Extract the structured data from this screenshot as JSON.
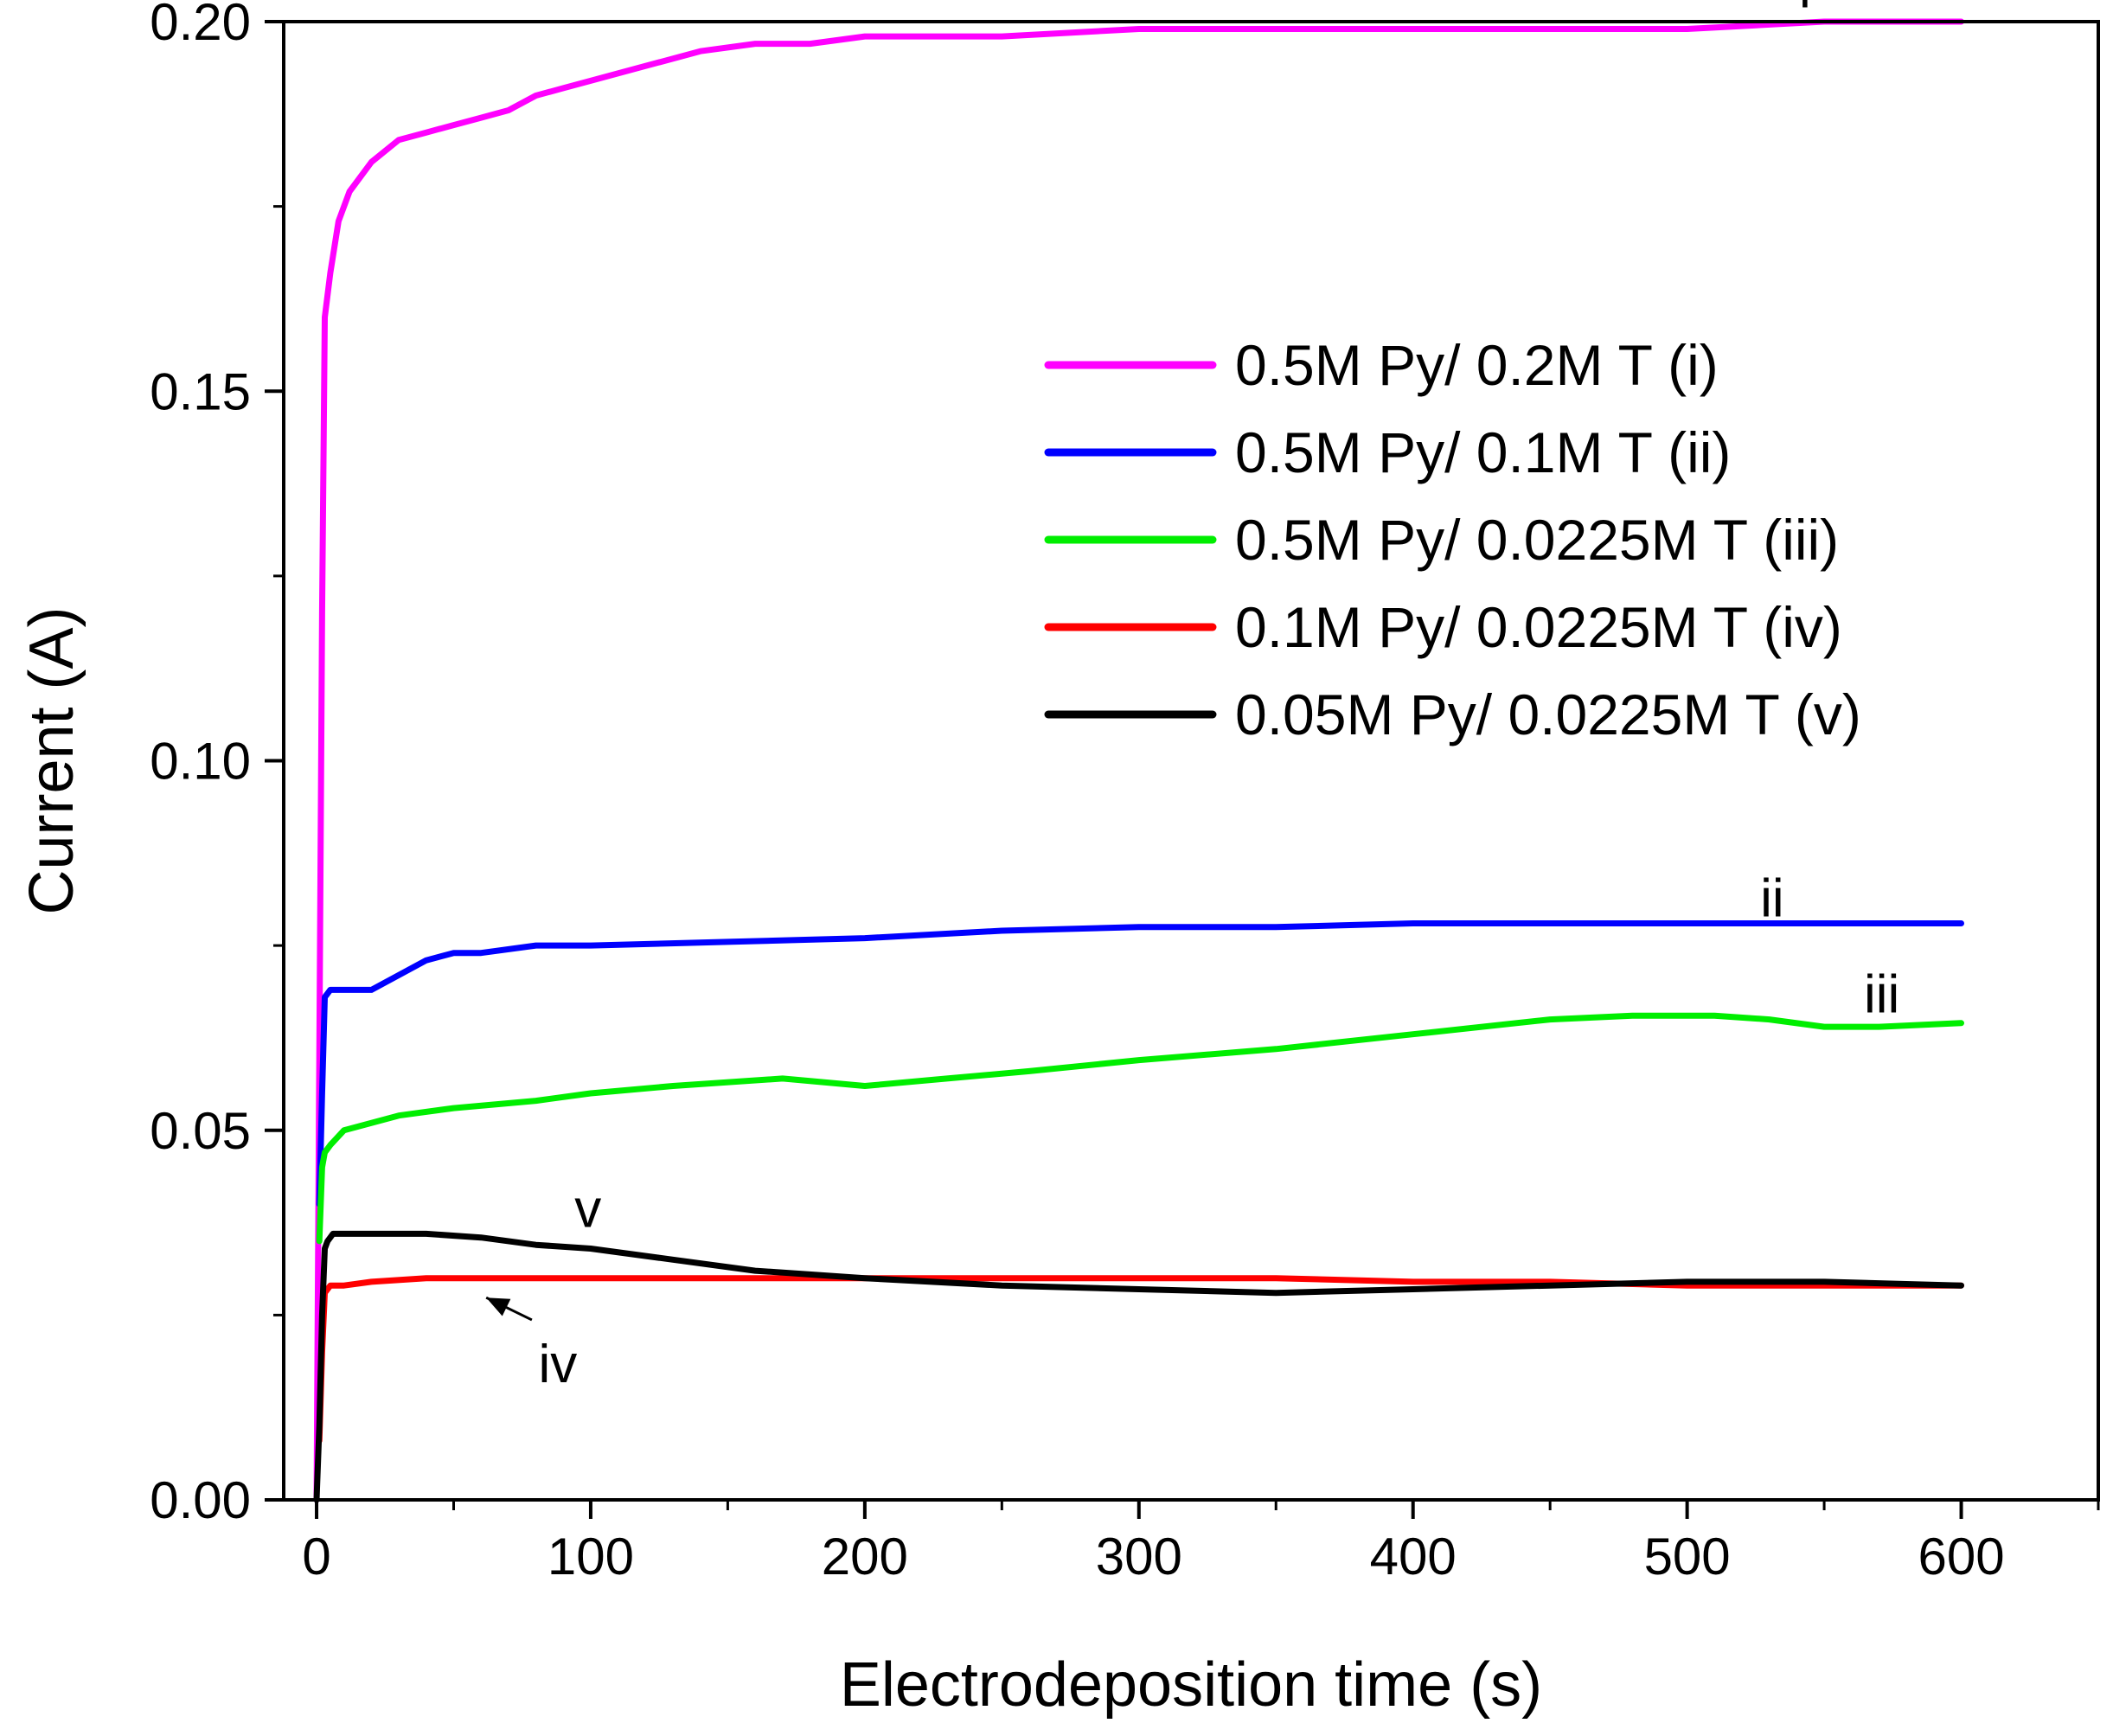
{
  "chart_data": {
    "type": "line",
    "title": "",
    "xlabel": "Electrodeposition time (s)",
    "ylabel": "Current (A)",
    "xlim": [
      -12,
      650
    ],
    "ylim": [
      0,
      0.2
    ],
    "grid": false,
    "x_ticks": [
      0,
      100,
      200,
      300,
      400,
      500,
      600
    ],
    "x_tick_labels": [
      "0",
      "100",
      "200",
      "300",
      "400",
      "500",
      "600"
    ],
    "y_ticks": [
      0.0,
      0.05,
      0.1,
      0.15,
      0.2
    ],
    "y_tick_labels": [
      "0.00",
      "0.05",
      "0.10",
      "0.15",
      "0.20"
    ],
    "legend_position": "upper-right",
    "series": [
      {
        "name": "0.5M Py/ 0.2M T (i)",
        "curve_label": "i",
        "color": "#ff00ff",
        "x": [
          0,
          1,
          2,
          3,
          5,
          8,
          12,
          20,
          30,
          40,
          50,
          60,
          70,
          80,
          90,
          100,
          120,
          140,
          160,
          180,
          200,
          250,
          300,
          350,
          400,
          450,
          500,
          550,
          600
        ],
        "y": [
          0.0,
          0.06,
          0.12,
          0.16,
          0.166,
          0.173,
          0.177,
          0.181,
          0.184,
          0.185,
          0.186,
          0.187,
          0.188,
          0.19,
          0.191,
          0.192,
          0.194,
          0.196,
          0.197,
          0.197,
          0.198,
          0.198,
          0.199,
          0.199,
          0.199,
          0.199,
          0.199,
          0.2,
          0.2
        ]
      },
      {
        "name": "0.5M Py/ 0.1M T (ii)",
        "curve_label": "ii",
        "color": "#0000ff",
        "x": [
          1,
          2,
          3,
          5,
          10,
          20,
          30,
          40,
          50,
          60,
          80,
          100,
          150,
          200,
          250,
          300,
          350,
          400,
          450,
          500,
          550,
          600
        ],
        "y": [
          0.04,
          0.055,
          0.068,
          0.069,
          0.069,
          0.069,
          0.071,
          0.073,
          0.074,
          0.074,
          0.075,
          0.075,
          0.0755,
          0.076,
          0.077,
          0.0775,
          0.0775,
          0.078,
          0.078,
          0.078,
          0.078,
          0.078
        ]
      },
      {
        "name": "0.5M Py/ 0.0225M T (iii)",
        "curve_label": "iii",
        "color": "#00ee00",
        "x": [
          1,
          2,
          3,
          5,
          10,
          20,
          30,
          50,
          80,
          100,
          130,
          170,
          200,
          230,
          260,
          300,
          350,
          400,
          450,
          480,
          510,
          530,
          550,
          570,
          600
        ],
        "y": [
          0.035,
          0.045,
          0.047,
          0.048,
          0.05,
          0.051,
          0.052,
          0.053,
          0.054,
          0.055,
          0.056,
          0.057,
          0.056,
          0.057,
          0.058,
          0.0595,
          0.061,
          0.063,
          0.065,
          0.0655,
          0.0655,
          0.065,
          0.064,
          0.064,
          0.0645
        ]
      },
      {
        "name": "0.1M Py/ 0.0225M T (iv)",
        "curve_label": "iv",
        "color": "#ff0000",
        "x": [
          1,
          2,
          3,
          5,
          10,
          20,
          40,
          60,
          100,
          150,
          200,
          250,
          300,
          350,
          400,
          450,
          500,
          550,
          600
        ],
        "y": [
          0.008,
          0.02,
          0.028,
          0.029,
          0.029,
          0.0295,
          0.03,
          0.03,
          0.03,
          0.03,
          0.03,
          0.03,
          0.03,
          0.03,
          0.0295,
          0.0295,
          0.029,
          0.029,
          0.029
        ]
      },
      {
        "name": "0.05M Py/ 0.0225M T (v)",
        "curve_label": "v",
        "color": "#000000",
        "x": [
          0,
          1,
          2,
          3,
          4,
          6,
          10,
          20,
          40,
          60,
          80,
          100,
          130,
          160,
          200,
          250,
          300,
          350,
          400,
          450,
          500,
          550,
          600
        ],
        "y": [
          0.0,
          0.01,
          0.025,
          0.034,
          0.035,
          0.036,
          0.036,
          0.036,
          0.036,
          0.0355,
          0.0345,
          0.034,
          0.0325,
          0.031,
          0.03,
          0.029,
          0.0285,
          0.028,
          0.0285,
          0.029,
          0.0295,
          0.0295,
          0.029
        ]
      }
    ],
    "annotations": [
      {
        "text": "i",
        "x": 543,
        "y": 0.2045
      },
      {
        "text": "ii",
        "x": 531,
        "y": 0.0815
      },
      {
        "text": "iii",
        "x": 571,
        "y": 0.0685
      },
      {
        "text": "v",
        "x": 99,
        "y": 0.0395
      },
      {
        "text": "iv",
        "x": 88,
        "y": 0.0185,
        "arrow_to": {
          "x": 60,
          "y": 0.029
        }
      }
    ]
  }
}
